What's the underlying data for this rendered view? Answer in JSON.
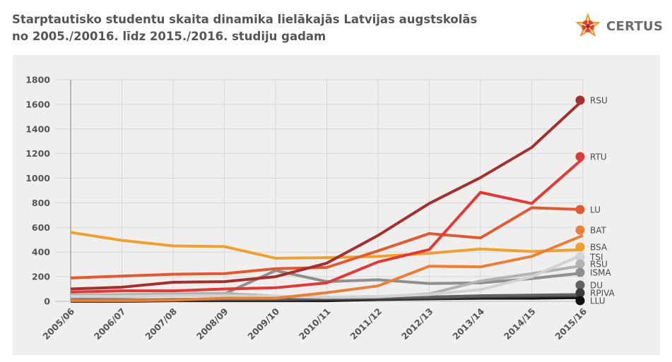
{
  "header": {
    "title_line1": "Starptautisko studentu skaita dinamika lielākajās Latvijas augstskolās",
    "title_line2": "no 2005./20016. līdz 2015./2016. studiju gadam",
    "logo_text": "CERTUS",
    "logo_icon": "star-snowflake-icon"
  },
  "chart_data": {
    "type": "line",
    "title": "Starptautisko studentu skaita dinamika lielākajās Latvijas augstskolās no 2005./20016. līdz 2015./2016. studiju gadam",
    "xlabel": "",
    "ylabel": "",
    "ylim": [
      0,
      1800
    ],
    "yticks": [
      0,
      200,
      400,
      600,
      800,
      1000,
      1200,
      1400,
      1600,
      1800
    ],
    "grid": true,
    "legend_position": "right",
    "categories": [
      "2005/06",
      "2006/07",
      "2007/08",
      "2008/09",
      "2009/10",
      "2010/11",
      "2011/12",
      "2012/13",
      "2013/14",
      "2014/15",
      "2015/16"
    ],
    "series": [
      {
        "name": "RSU",
        "color": "#a3302f",
        "values": [
          100,
          115,
          155,
          160,
          200,
          310,
          535,
          795,
          1005,
          1250,
          1635
        ]
      },
      {
        "name": "RTU",
        "color": "#de3a37",
        "values": [
          75,
          85,
          85,
          100,
          110,
          150,
          320,
          420,
          885,
          795,
          1160
        ]
      },
      {
        "name": "LU",
        "color": "#e05a33",
        "values": [
          190,
          205,
          220,
          225,
          265,
          275,
          410,
          550,
          515,
          760,
          745
        ]
      },
      {
        "name": "BAT",
        "color": "#e8803a",
        "values": [
          5,
          5,
          10,
          25,
          25,
          70,
          125,
          285,
          280,
          365,
          535
        ]
      },
      {
        "name": "BSA",
        "color": "#eea032",
        "values": [
          560,
          495,
          450,
          445,
          350,
          355,
          365,
          390,
          425,
          405,
          420
        ]
      },
      {
        "name": "TSI",
        "color": "#d2d2d2",
        "values": [
          40,
          40,
          45,
          45,
          40,
          35,
          40,
          55,
          95,
          200,
          380
        ]
      },
      {
        "name": "RSU",
        "color": "#b2b2b2",
        "values": [
          50,
          55,
          60,
          65,
          40,
          30,
          35,
          60,
          165,
          225,
          290
        ]
      },
      {
        "name": "ISMA",
        "color": "#8f8f8f",
        "values": [
          30,
          35,
          50,
          60,
          250,
          160,
          175,
          145,
          150,
          185,
          230
        ]
      },
      {
        "name": "DU",
        "color": "#616161",
        "values": [
          10,
          10,
          15,
          20,
          20,
          25,
          30,
          35,
          45,
          50,
          55
        ]
      },
      {
        "name": "RPIVA",
        "color": "#3c3c3c",
        "values": [
          5,
          5,
          10,
          10,
          10,
          15,
          20,
          25,
          35,
          40,
          45
        ]
      },
      {
        "name": "LLU",
        "color": "#111111",
        "values": [
          0,
          0,
          5,
          5,
          5,
          5,
          15,
          20,
          25,
          25,
          30
        ]
      }
    ]
  }
}
